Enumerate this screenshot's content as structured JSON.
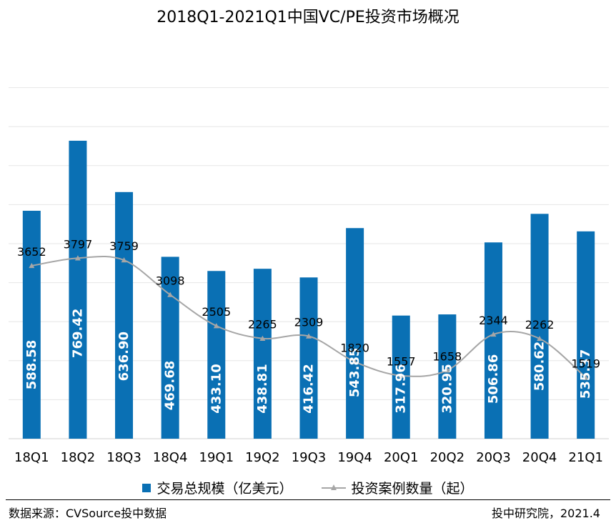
{
  "chart_data": {
    "type": "bar+line",
    "title": "2018Q1-2021Q1中国VC/PE投资市场概况",
    "categories": [
      "18Q1",
      "18Q2",
      "18Q3",
      "18Q4",
      "19Q1",
      "19Q2",
      "19Q3",
      "19Q4",
      "20Q1",
      "20Q2",
      "20Q3",
      "20Q4",
      "21Q1"
    ],
    "series": [
      {
        "name": "交易总规模（亿美元）",
        "type": "bar",
        "color": "#0A70B4",
        "values": [
          588.58,
          769.42,
          636.9,
          469.68,
          433.1,
          438.81,
          416.42,
          543.85,
          317.96,
          320.95,
          506.86,
          580.62,
          535.37
        ],
        "labels": [
          "588.58",
          "769.42",
          "636.90",
          "469.68",
          "433.10",
          "438.81",
          "416.42",
          "543.85",
          "317.96",
          "320.95",
          "506.86",
          "580.62",
          "535.37"
        ]
      },
      {
        "name": "投资案例数量（起）",
        "type": "line",
        "color": "#A6A6A6",
        "marker": "triangle",
        "smooth": true,
        "values": [
          3652,
          3797,
          3759,
          3098,
          2505,
          2265,
          2309,
          1820,
          1557,
          1658,
          2344,
          2262,
          1519
        ],
        "labels": [
          "3652",
          "3797",
          "3759",
          "3098",
          "2505",
          "2265",
          "2309",
          "1820",
          "1557",
          "1658",
          "2344",
          "2262",
          "1519"
        ]
      }
    ],
    "xlabel": "",
    "ylabel": "",
    "grid": true,
    "legend_position": "bottom"
  },
  "footer": {
    "source": "数据来源：CVSource投中数据",
    "credit": "投中研究院，2021.4"
  }
}
